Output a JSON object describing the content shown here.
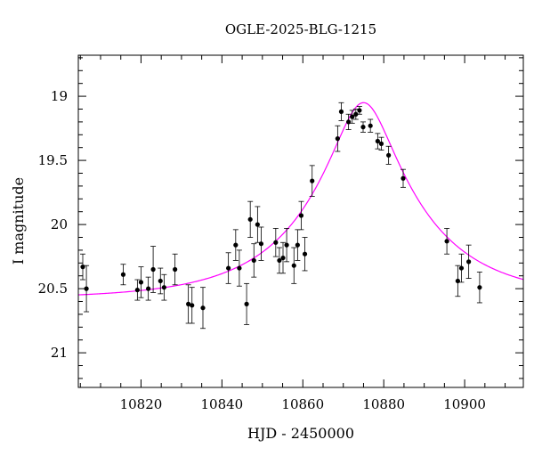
{
  "chart_data": {
    "type": "scatter",
    "title": "OGLE-2025-BLG-1215",
    "xlabel": "HJD - 2450000",
    "ylabel": "I magnitude",
    "xlim": [
      10804.5,
      10914.5
    ],
    "ylim": [
      21.27,
      18.68
    ],
    "y_inverted": true,
    "x_ticks": [
      10820,
      10840,
      10860,
      10880,
      10900
    ],
    "x_tick_labels": [
      "10820",
      "10840",
      "10860",
      "10880",
      "10900"
    ],
    "y_ticks": [
      19,
      19.5,
      20,
      20.5,
      21
    ],
    "y_tick_labels": [
      "19",
      "19.5",
      "20",
      "20.5",
      "21"
    ],
    "x_minor_step": 5,
    "y_minor_step": 0.1,
    "grid": false,
    "legend": "none",
    "colors": {
      "points": "#000000",
      "model": "#ff00ff",
      "axes": "#000000"
    },
    "series": [
      {
        "kind": "points-with-errorbars",
        "x": [
          10805.6,
          10806.5,
          10815.6,
          10819.1,
          10820.0,
          10821.8,
          10823.0,
          10824.8,
          10825.7,
          10828.4,
          10831.7,
          10832.6,
          10835.3,
          10841.6,
          10843.4,
          10844.3,
          10846.1,
          10847.0,
          10847.9,
          10848.8,
          10849.7,
          10853.3,
          10854.2,
          10855.1,
          10856.0,
          10857.8,
          10858.7,
          10859.6,
          10860.5,
          10862.3,
          10868.6,
          10869.5,
          10871.3,
          10872.2,
          10873.1,
          10874.0,
          10874.9,
          10876.7,
          10878.5,
          10879.4,
          10881.2,
          10884.8,
          10895.6,
          10898.3,
          10899.2,
          10901.0,
          10903.7
        ],
        "y": [
          20.33,
          20.5,
          20.39,
          20.51,
          20.45,
          20.5,
          20.35,
          20.44,
          20.49,
          20.35,
          20.62,
          20.63,
          20.65,
          20.34,
          20.16,
          20.34,
          20.62,
          19.96,
          20.28,
          20.0,
          20.15,
          20.14,
          20.28,
          20.26,
          20.16,
          20.32,
          20.16,
          19.93,
          20.23,
          19.66,
          19.33,
          19.12,
          19.2,
          19.16,
          19.14,
          19.11,
          19.24,
          19.23,
          19.35,
          19.37,
          19.46,
          19.64,
          20.13,
          20.44,
          20.34,
          20.29,
          20.49
        ],
        "err": [
          0.1,
          0.18,
          0.08,
          0.08,
          0.12,
          0.09,
          0.18,
          0.1,
          0.1,
          0.12,
          0.15,
          0.14,
          0.16,
          0.12,
          0.12,
          0.14,
          0.16,
          0.14,
          0.13,
          0.14,
          0.13,
          0.11,
          0.1,
          0.12,
          0.13,
          0.14,
          0.12,
          0.11,
          0.13,
          0.12,
          0.1,
          0.07,
          0.06,
          0.05,
          0.04,
          0.03,
          0.04,
          0.05,
          0.06,
          0.05,
          0.07,
          0.07,
          0.1,
          0.12,
          0.11,
          0.13,
          0.12
        ]
      },
      {
        "kind": "model-curve",
        "x_range": [
          10804.5,
          10914.5
        ],
        "t0": 10875.0,
        "baseline_mag": 20.58,
        "u0": 0.25,
        "tE": 28.0,
        "blend_fraction": 1.0
      }
    ]
  }
}
